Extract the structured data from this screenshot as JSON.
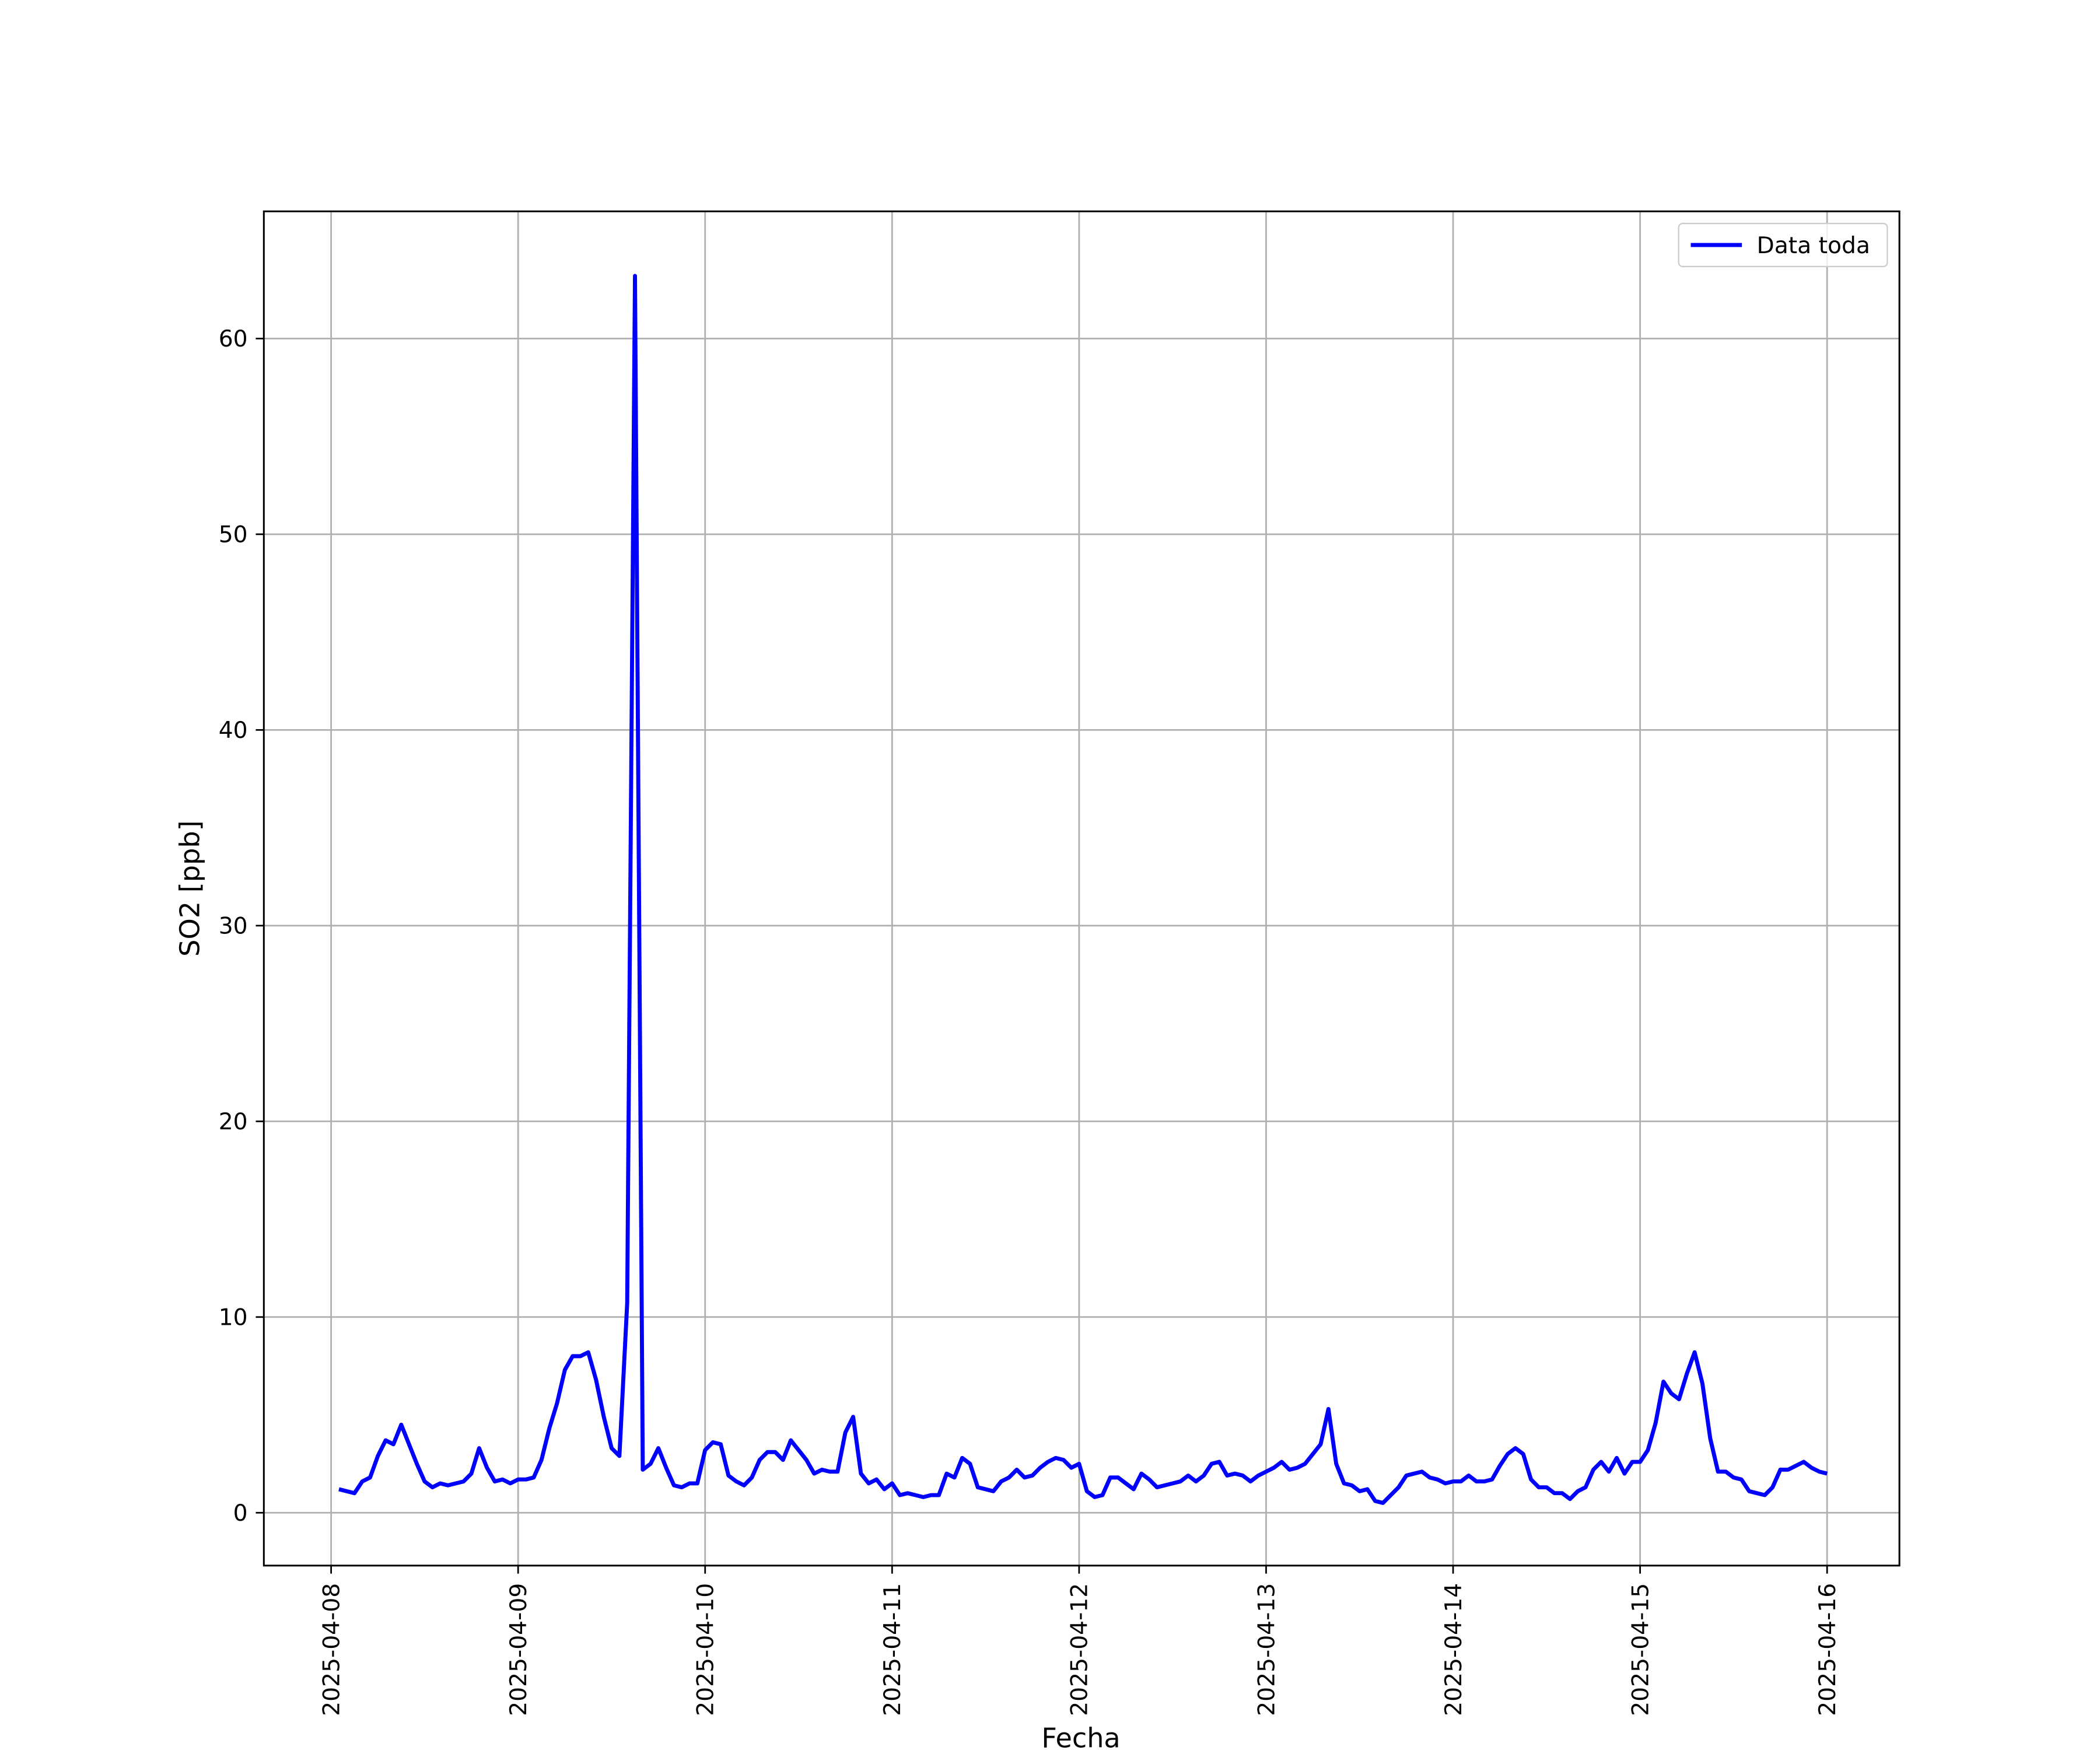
{
  "chart_data": {
    "type": "line",
    "xlabel": "Fecha",
    "ylabel": "SO2 [ppb]",
    "x": [
      "2025-04-08T01:00",
      "2025-04-08T02:00",
      "2025-04-08T03:00",
      "2025-04-08T04:00",
      "2025-04-08T05:00",
      "2025-04-08T06:00",
      "2025-04-08T07:00",
      "2025-04-08T08:00",
      "2025-04-08T09:00",
      "2025-04-08T10:00",
      "2025-04-08T11:00",
      "2025-04-08T12:00",
      "2025-04-08T13:00",
      "2025-04-08T14:00",
      "2025-04-08T15:00",
      "2025-04-08T16:00",
      "2025-04-08T17:00",
      "2025-04-08T18:00",
      "2025-04-08T19:00",
      "2025-04-08T20:00",
      "2025-04-08T21:00",
      "2025-04-08T22:00",
      "2025-04-08T23:00",
      "2025-04-09T00:00",
      "2025-04-09T01:00",
      "2025-04-09T02:00",
      "2025-04-09T03:00",
      "2025-04-09T04:00",
      "2025-04-09T05:00",
      "2025-04-09T06:00",
      "2025-04-09T07:00",
      "2025-04-09T08:00",
      "2025-04-09T09:00",
      "2025-04-09T10:00",
      "2025-04-09T11:00",
      "2025-04-09T12:00",
      "2025-04-09T13:00",
      "2025-04-09T14:00",
      "2025-04-09T15:00",
      "2025-04-09T16:00",
      "2025-04-09T17:00",
      "2025-04-09T18:00",
      "2025-04-09T19:00",
      "2025-04-09T20:00",
      "2025-04-09T21:00",
      "2025-04-09T22:00",
      "2025-04-09T23:00",
      "2025-04-10T00:00",
      "2025-04-10T01:00",
      "2025-04-10T02:00",
      "2025-04-10T03:00",
      "2025-04-10T04:00",
      "2025-04-10T05:00",
      "2025-04-10T06:00",
      "2025-04-10T07:00",
      "2025-04-10T08:00",
      "2025-04-10T09:00",
      "2025-04-10T10:00",
      "2025-04-10T11:00",
      "2025-04-10T12:00",
      "2025-04-10T13:00",
      "2025-04-10T14:00",
      "2025-04-10T15:00",
      "2025-04-10T16:00",
      "2025-04-10T17:00",
      "2025-04-10T18:00",
      "2025-04-10T19:00",
      "2025-04-10T20:00",
      "2025-04-10T21:00",
      "2025-04-10T22:00",
      "2025-04-10T23:00",
      "2025-04-11T00:00",
      "2025-04-11T01:00",
      "2025-04-11T02:00",
      "2025-04-11T03:00",
      "2025-04-11T04:00",
      "2025-04-11T05:00",
      "2025-04-11T06:00",
      "2025-04-11T07:00",
      "2025-04-11T08:00",
      "2025-04-11T09:00",
      "2025-04-11T10:00",
      "2025-04-11T11:00",
      "2025-04-11T12:00",
      "2025-04-11T13:00",
      "2025-04-11T14:00",
      "2025-04-11T15:00",
      "2025-04-11T16:00",
      "2025-04-11T17:00",
      "2025-04-11T18:00",
      "2025-04-11T19:00",
      "2025-04-11T20:00",
      "2025-04-11T21:00",
      "2025-04-11T22:00",
      "2025-04-11T23:00",
      "2025-04-12T00:00",
      "2025-04-12T01:00",
      "2025-04-12T02:00",
      "2025-04-12T03:00",
      "2025-04-12T04:00",
      "2025-04-12T05:00",
      "2025-04-12T06:00",
      "2025-04-12T07:00",
      "2025-04-12T08:00",
      "2025-04-12T09:00",
      "2025-04-12T10:00",
      "2025-04-12T11:00",
      "2025-04-12T12:00",
      "2025-04-12T13:00",
      "2025-04-12T14:00",
      "2025-04-12T15:00",
      "2025-04-12T16:00",
      "2025-04-12T17:00",
      "2025-04-12T18:00",
      "2025-04-12T19:00",
      "2025-04-12T20:00",
      "2025-04-12T21:00",
      "2025-04-12T22:00",
      "2025-04-12T23:00",
      "2025-04-13T00:00",
      "2025-04-13T01:00",
      "2025-04-13T02:00",
      "2025-04-13T03:00",
      "2025-04-13T04:00",
      "2025-04-13T05:00",
      "2025-04-13T06:00",
      "2025-04-13T07:00",
      "2025-04-13T08:00",
      "2025-04-13T09:00",
      "2025-04-13T10:00",
      "2025-04-13T11:00",
      "2025-04-13T12:00",
      "2025-04-13T13:00",
      "2025-04-13T14:00",
      "2025-04-13T15:00",
      "2025-04-13T16:00",
      "2025-04-13T17:00",
      "2025-04-13T18:00",
      "2025-04-13T19:00",
      "2025-04-13T20:00",
      "2025-04-13T21:00",
      "2025-04-13T22:00",
      "2025-04-13T23:00",
      "2025-04-14T00:00",
      "2025-04-14T01:00",
      "2025-04-14T02:00",
      "2025-04-14T03:00",
      "2025-04-14T04:00",
      "2025-04-14T05:00",
      "2025-04-14T06:00",
      "2025-04-14T07:00",
      "2025-04-14T08:00",
      "2025-04-14T09:00",
      "2025-04-14T10:00",
      "2025-04-14T11:00",
      "2025-04-14T12:00",
      "2025-04-14T13:00",
      "2025-04-14T14:00",
      "2025-04-14T15:00",
      "2025-04-14T16:00",
      "2025-04-14T17:00",
      "2025-04-14T18:00",
      "2025-04-14T19:00",
      "2025-04-14T20:00",
      "2025-04-14T21:00",
      "2025-04-14T22:00",
      "2025-04-14T23:00",
      "2025-04-15T00:00",
      "2025-04-15T01:00",
      "2025-04-15T02:00",
      "2025-04-15T03:00",
      "2025-04-15T04:00",
      "2025-04-15T05:00",
      "2025-04-15T06:00",
      "2025-04-15T07:00",
      "2025-04-15T08:00",
      "2025-04-15T09:00",
      "2025-04-15T10:00",
      "2025-04-15T11:00",
      "2025-04-15T12:00",
      "2025-04-15T13:00",
      "2025-04-15T14:00",
      "2025-04-15T15:00",
      "2025-04-15T16:00",
      "2025-04-15T17:00",
      "2025-04-15T18:00",
      "2025-04-15T19:00",
      "2025-04-15T20:00",
      "2025-04-15T21:00",
      "2025-04-15T22:00",
      "2025-04-15T23:00",
      "2025-04-16T00:00"
    ],
    "series": [
      {
        "name": "Data toda",
        "color": "#0000ff",
        "values": [
          1.2,
          1.1,
          1.0,
          1.6,
          1.8,
          2.9,
          3.7,
          3.5,
          4.5,
          3.5,
          2.5,
          1.6,
          1.3,
          1.5,
          1.4,
          1.5,
          1.6,
          2.0,
          3.3,
          2.3,
          1.6,
          1.7,
          1.5,
          1.7,
          1.7,
          1.8,
          2.7,
          4.3,
          5.6,
          7.3,
          8.0,
          8.0,
          8.2,
          6.8,
          4.9,
          3.3,
          2.9,
          10.7,
          63.2,
          2.2,
          2.5,
          3.3,
          2.3,
          1.4,
          1.3,
          1.5,
          1.5,
          3.2,
          3.6,
          3.5,
          1.9,
          1.6,
          1.4,
          1.8,
          2.7,
          3.1,
          3.1,
          2.7,
          3.7,
          3.2,
          2.7,
          2.0,
          2.2,
          2.1,
          2.1,
          4.1,
          4.9,
          2.0,
          1.5,
          1.7,
          1.2,
          1.5,
          0.9,
          1.0,
          0.9,
          0.8,
          0.9,
          0.9,
          2.0,
          1.8,
          2.8,
          2.5,
          1.3,
          1.2,
          1.1,
          1.6,
          1.8,
          2.2,
          1.8,
          1.9,
          2.3,
          2.6,
          2.8,
          2.7,
          2.3,
          2.5,
          1.1,
          0.8,
          0.9,
          1.8,
          1.8,
          1.5,
          1.2,
          2.0,
          1.7,
          1.3,
          1.4,
          1.5,
          1.6,
          1.9,
          1.6,
          1.9,
          2.5,
          2.6,
          1.9,
          2.0,
          1.9,
          1.6,
          1.9,
          2.1,
          2.3,
          2.6,
          2.2,
          2.3,
          2.5,
          3.0,
          3.5,
          5.3,
          2.5,
          1.5,
          1.4,
          1.1,
          1.2,
          0.6,
          0.5,
          0.9,
          1.3,
          1.9,
          2.0,
          2.1,
          1.8,
          1.7,
          1.5,
          1.6,
          1.6,
          1.9,
          1.6,
          1.6,
          1.7,
          2.4,
          3.0,
          3.3,
          3.0,
          1.7,
          1.3,
          1.3,
          1.0,
          1.0,
          0.7,
          1.1,
          1.3,
          2.2,
          2.6,
          2.1,
          2.8,
          2.0,
          2.6,
          2.6,
          3.2,
          4.6,
          6.7,
          6.1,
          5.8,
          7.1,
          8.2,
          6.6,
          3.8,
          2.1,
          2.1,
          1.8,
          1.7,
          1.1,
          1.0,
          0.9,
          1.3,
          2.2,
          2.2,
          2.4,
          2.6,
          2.3,
          2.1,
          2.0
        ]
      }
    ],
    "xlim": [
      "2025-04-07T15:22",
      "2025-04-16T09:17"
    ],
    "xticks": [
      "2025-04-08",
      "2025-04-09",
      "2025-04-10",
      "2025-04-11",
      "2025-04-12",
      "2025-04-13",
      "2025-04-14",
      "2025-04-15",
      "2025-04-16"
    ],
    "ylim": [
      -2.7,
      66.5
    ],
    "yticks": [
      0,
      10,
      20,
      30,
      40,
      50,
      60
    ],
    "grid": true,
    "legend": "upper right"
  }
}
